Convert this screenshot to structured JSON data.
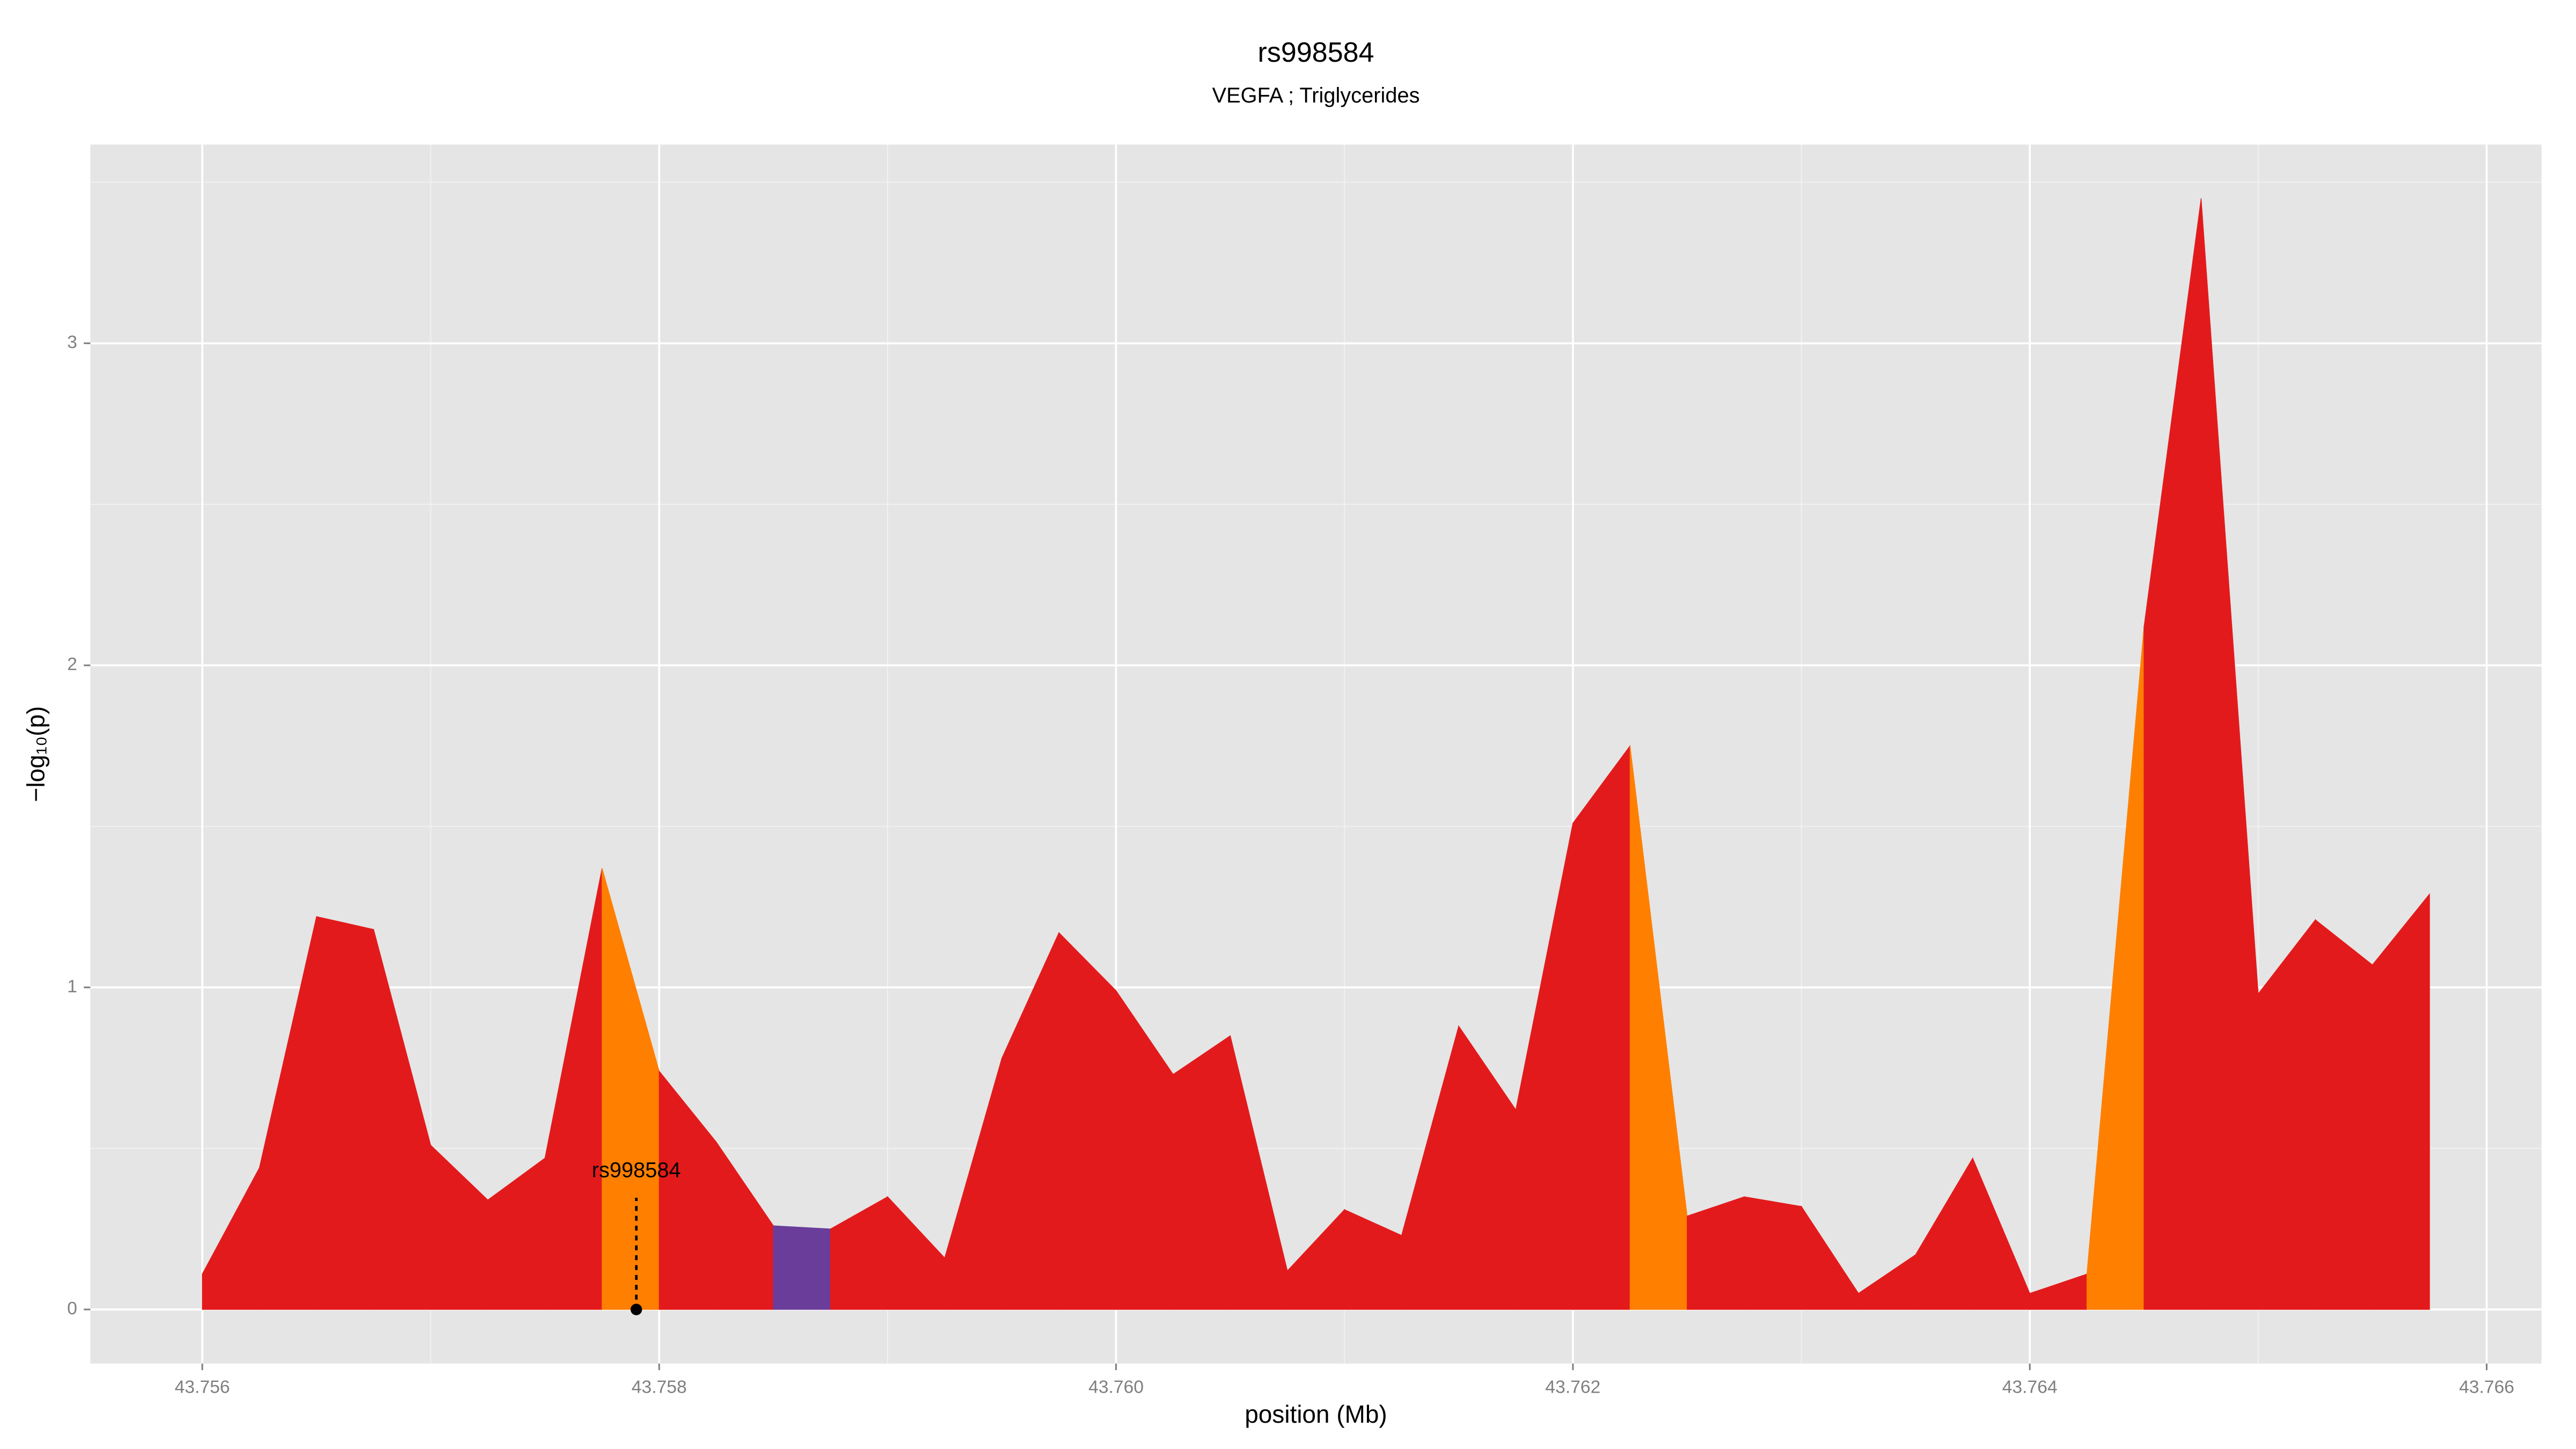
{
  "chart_data": {
    "type": "area",
    "title": "rs998584",
    "subtitle": "VEGFA ; Triglycerides",
    "x_label": "position (Mb)",
    "y_label": "−log₁₀(p)",
    "x": [
      43.756,
      43.75625,
      43.7565,
      43.75675,
      43.757,
      43.75725,
      43.7575,
      43.75775,
      43.758,
      43.75825,
      43.7585,
      43.75875,
      43.759,
      43.75925,
      43.7595,
      43.75975,
      43.76,
      43.76025,
      43.7605,
      43.76075,
      43.761,
      43.76125,
      43.7615,
      43.76175,
      43.762,
      43.76225,
      43.7625,
      43.76275,
      43.763,
      43.76325,
      43.7635,
      43.76375,
      43.764,
      43.76425,
      43.7645,
      43.76475,
      43.765,
      43.76525,
      43.7655,
      43.76575
    ],
    "values": [
      0.11,
      0.44,
      1.22,
      1.18,
      0.51,
      0.34,
      0.47,
      1.37,
      0.74,
      0.52,
      0.26,
      0.25,
      0.35,
      0.16,
      0.78,
      1.17,
      0.99,
      0.73,
      0.85,
      0.12,
      0.31,
      0.23,
      0.88,
      0.62,
      1.51,
      1.75,
      0.29,
      0.35,
      0.32,
      0.05,
      0.17,
      0.47,
      0.05,
      0.11,
      2.12,
      3.45,
      0.98,
      1.21,
      1.07,
      1.29
    ],
    "segment_colors": [
      "#e31a1c",
      "#e31a1c",
      "#e31a1c",
      "#e31a1c",
      "#e31a1c",
      "#e31a1c",
      "#e31a1c",
      "#ff7f00",
      "#e31a1c",
      "#e31a1c",
      "#6a3d9a",
      "#e31a1c",
      "#e31a1c",
      "#e31a1c",
      "#e31a1c",
      "#e31a1c",
      "#e31a1c",
      "#e31a1c",
      "#e31a1c",
      "#e31a1c",
      "#e31a1c",
      "#e31a1c",
      "#e31a1c",
      "#e31a1c",
      "#e31a1c",
      "#ff7f00",
      "#e31a1c",
      "#e31a1c",
      "#e31a1c",
      "#e31a1c",
      "#e31a1c",
      "#e31a1c",
      "#e31a1c",
      "#ff7f00",
      "#e31a1c",
      "#e31a1c",
      "#e31a1c",
      "#e31a1c",
      "#e31a1c"
    ],
    "annotation": {
      "label": "rs998584",
      "x": 43.7579
    },
    "xlim": [
      43.75551,
      43.76624
    ],
    "ylim": [
      -0.168,
      3.617
    ],
    "xticks": [
      43.756,
      43.758,
      {
        "value": 43.76,
        "label": "43.760"
      },
      43.762,
      43.764,
      43.766
    ],
    "yticks": [
      0,
      1,
      2,
      3
    ],
    "minor_xticks": [
      43.757,
      43.759,
      43.761,
      43.763,
      43.765
    ],
    "minor_yticks": [
      0.5,
      1.5,
      2.5,
      3.5
    ],
    "grid": true
  }
}
